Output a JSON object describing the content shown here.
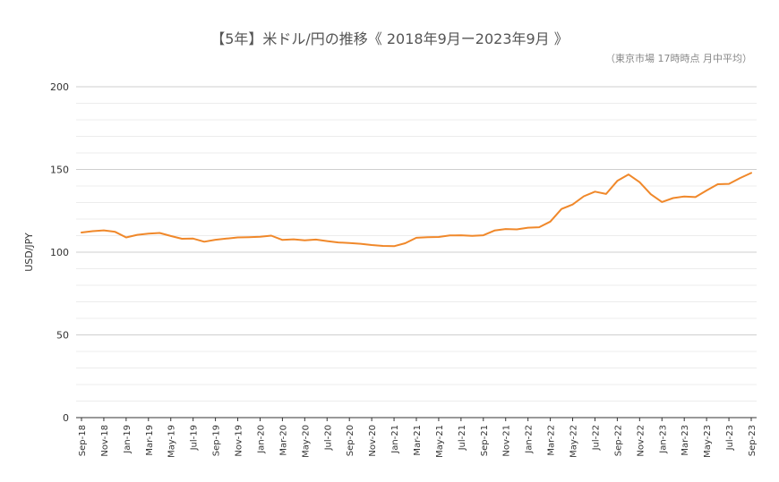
{
  "chart_data": {
    "type": "line",
    "title": "【5年】米ドル/円の推移《 2018年9月ー2023年9月 》",
    "subtitle": "（東京市場 17時時点 月中平均）",
    "xlabel": "",
    "ylabel": "USD/JPY",
    "ylim": [
      0,
      200
    ],
    "yticks": [
      "0",
      "50",
      "100",
      "150",
      "200"
    ],
    "grid": true,
    "line_color": "#f0882a",
    "months": [
      "Sep-18",
      "Oct-18",
      "Nov-18",
      "Dec-18",
      "Jan-19",
      "Feb-19",
      "Mar-19",
      "Apr-19",
      "May-19",
      "Jun-19",
      "Jul-19",
      "Aug-19",
      "Sep-19",
      "Oct-19",
      "Nov-19",
      "Dec-19",
      "Jan-20",
      "Feb-20",
      "Mar-20",
      "Apr-20",
      "May-20",
      "Jun-20",
      "Jul-20",
      "Aug-20",
      "Sep-20",
      "Oct-20",
      "Nov-20",
      "Dec-20",
      "Jan-21",
      "Feb-21",
      "Mar-21",
      "Apr-21",
      "May-21",
      "Jun-21",
      "Jul-21",
      "Aug-21",
      "Sep-21",
      "Oct-21",
      "Nov-21",
      "Dec-21",
      "Jan-22",
      "Feb-22",
      "Mar-22",
      "Apr-22",
      "May-22",
      "Jun-22",
      "Jul-22",
      "Aug-22",
      "Sep-22",
      "Oct-22",
      "Nov-22",
      "Dec-22",
      "Jan-23",
      "Feb-23",
      "Mar-23",
      "Apr-23",
      "May-23",
      "Jun-23",
      "Jul-23",
      "Aug-23",
      "Sep-23"
    ],
    "xtick_labels": [
      "Sep-18",
      "Nov-18",
      "Jan-19",
      "Mar-19",
      "May-19",
      "Jul-19",
      "Sep-19",
      "Nov-19",
      "Jan-20",
      "Mar-20",
      "May-20",
      "Jul-20",
      "Sep-20",
      "Nov-20",
      "Jan-21",
      "Mar-21",
      "May-21",
      "Jul-21",
      "Sep-21",
      "Nov-21",
      "Jan-22",
      "Mar-22",
      "May-22",
      "Jul-22",
      "Sep-22",
      "Nov-22",
      "Jan-23",
      "Mar-23",
      "May-23",
      "Jul-23",
      "Sep-23"
    ],
    "series": [
      {
        "values": [
          111.9,
          112.7,
          113.2,
          112.3,
          108.9,
          110.5,
          111.2,
          111.6,
          109.8,
          108.1,
          108.2,
          106.3,
          107.5,
          108.2,
          108.9,
          109.1,
          109.3,
          110.0,
          107.4,
          107.8,
          107.2,
          107.6,
          106.7,
          105.9,
          105.5,
          105.1,
          104.3,
          103.8,
          103.6,
          105.4,
          108.7,
          109.1,
          109.2,
          110.1,
          110.2,
          109.9,
          110.2,
          113.1,
          114.0,
          113.8,
          114.8,
          115.1,
          118.5,
          126.1,
          128.8,
          133.8,
          136.6,
          135.2,
          143.1,
          147.0,
          142.3,
          135.0,
          130.3,
          132.7,
          133.7,
          133.3,
          137.3,
          141.1,
          141.3,
          144.8,
          147.9
        ]
      }
    ]
  }
}
